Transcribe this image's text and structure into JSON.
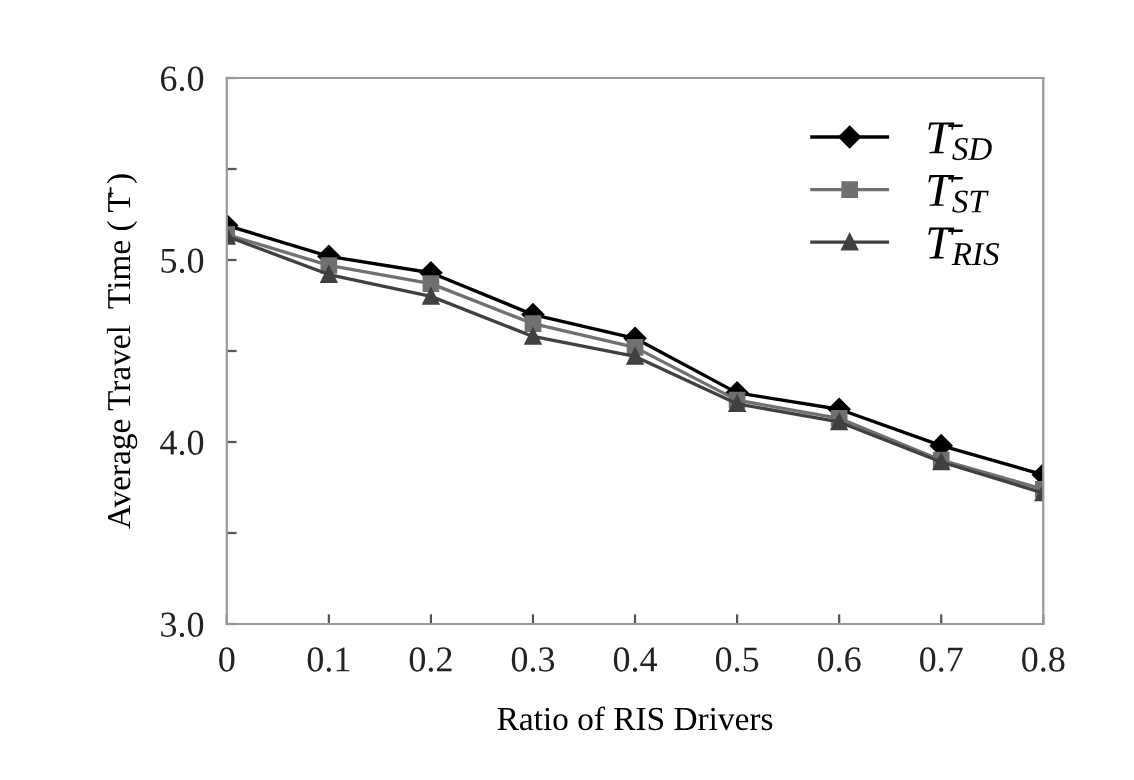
{
  "chart_data": {
    "type": "line",
    "xlabel": "Ratio of RIS Drivers",
    "ylabel": "Average Travel  Time ( T̄ )",
    "x": [
      0,
      0.1,
      0.2,
      0.3,
      0.4,
      0.5,
      0.6,
      0.7,
      0.8
    ],
    "series": [
      {
        "name": "T̄$_{SD}$",
        "color": "#000000",
        "marker": "diamond",
        "values": [
          5.19,
          5.02,
          4.93,
          4.7,
          4.57,
          4.27,
          4.18,
          3.98,
          3.82
        ]
      },
      {
        "name": "T̄$_{ST}$",
        "color": "#707070",
        "marker": "square",
        "values": [
          5.14,
          4.97,
          4.87,
          4.65,
          4.52,
          4.23,
          4.13,
          3.9,
          3.74
        ]
      },
      {
        "name": "T̄$_{RIS}$",
        "color": "#404040",
        "marker": "triangle",
        "values": [
          5.13,
          4.92,
          4.8,
          4.58,
          4.47,
          4.21,
          4.11,
          3.89,
          3.72
        ]
      }
    ],
    "xlim": [
      0,
      0.8
    ],
    "xticks": [
      0,
      0.1,
      0.2,
      0.3,
      0.4,
      0.5,
      0.6,
      0.7,
      0.8
    ],
    "ylim": [
      3.0,
      6.0
    ],
    "yticks": [
      {
        "value": 3.0,
        "label": "3.0"
      },
      {
        "value": 3.5,
        "label": null
      },
      {
        "value": 4.0,
        "label": "4.0"
      },
      {
        "value": 4.5,
        "label": null
      },
      {
        "value": 5.0,
        "label": "5.0"
      },
      {
        "value": 5.5,
        "label": null
      },
      {
        "value": 6.0,
        "label": "6.0"
      }
    ],
    "grid": false,
    "legend": "top right",
    "line_style": "solid"
  }
}
